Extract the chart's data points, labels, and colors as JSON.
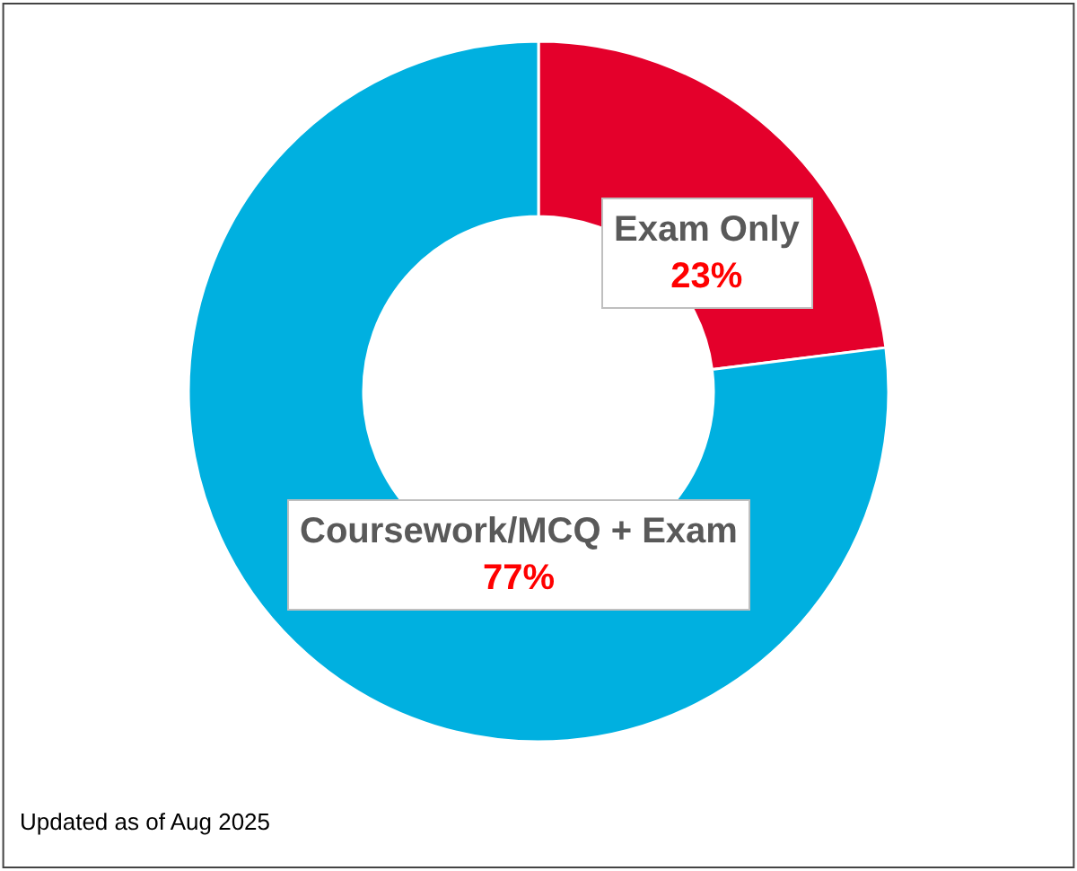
{
  "chart_data": {
    "type": "donut",
    "categories": [
      "Exam Only",
      "Coursework/MCQ + Exam"
    ],
    "values": [
      23,
      77
    ],
    "colors": [
      "#e4002b",
      "#00b0e0"
    ],
    "value_labels": [
      "23%",
      "77%"
    ],
    "legend": false,
    "annotations": [
      "Updated as of Aug 2025"
    ]
  }
}
